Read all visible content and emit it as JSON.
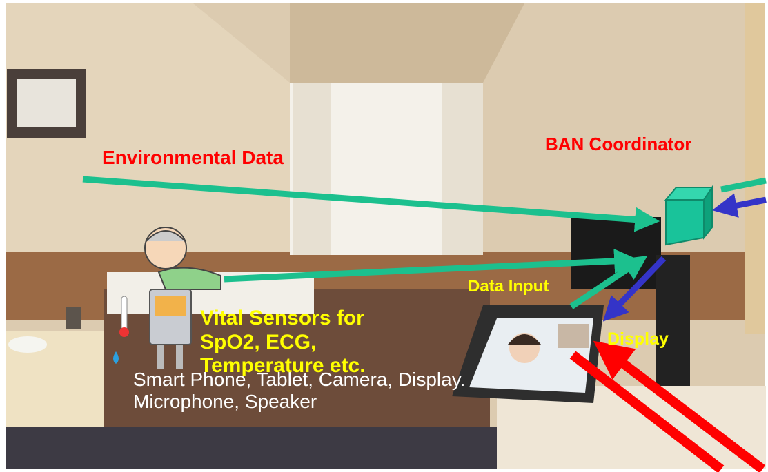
{
  "labels": {
    "environmental": "Environmental Data",
    "coordinator": "BAN Coordinator",
    "data_input": "Data Input",
    "vital_sensors": "Vital Sensors for SpO2, ECG, Temperature etc.",
    "display": "Display",
    "devices": "Smart Phone, Tablet, Camera, Display. Microphone, Speaker"
  }
}
